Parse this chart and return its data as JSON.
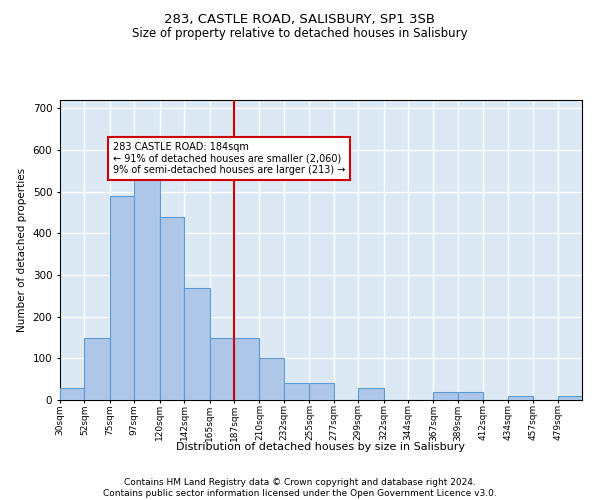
{
  "title1": "283, CASTLE ROAD, SALISBURY, SP1 3SB",
  "title2": "Size of property relative to detached houses in Salisbury",
  "xlabel": "Distribution of detached houses by size in Salisbury",
  "ylabel": "Number of detached properties",
  "footnote": "Contains HM Land Registry data © Crown copyright and database right 2024.\nContains public sector information licensed under the Open Government Licence v3.0.",
  "bin_labels": [
    "30sqm",
    "52sqm",
    "75sqm",
    "97sqm",
    "120sqm",
    "142sqm",
    "165sqm",
    "187sqm",
    "210sqm",
    "232sqm",
    "255sqm",
    "277sqm",
    "299sqm",
    "322sqm",
    "344sqm",
    "367sqm",
    "389sqm",
    "412sqm",
    "434sqm",
    "457sqm",
    "479sqm"
  ],
  "bin_edges": [
    30,
    52,
    75,
    97,
    120,
    142,
    165,
    187,
    210,
    232,
    255,
    277,
    299,
    322,
    344,
    367,
    389,
    412,
    434,
    457,
    479
  ],
  "bar_heights": [
    30,
    150,
    490,
    565,
    440,
    270,
    150,
    150,
    100,
    40,
    40,
    0,
    30,
    0,
    0,
    20,
    20,
    0,
    10,
    0,
    10
  ],
  "bar_color": "#aec6e8",
  "bar_edgecolor": "#5b9bd5",
  "property_line_x": 187,
  "property_line_color": "#cc0000",
  "annotation_text": "283 CASTLE ROAD: 184sqm\n← 91% of detached houses are smaller (2,060)\n9% of semi-detached houses are larger (213) →",
  "annotation_box_edgecolor": "#cc0000",
  "ylim": [
    0,
    720
  ],
  "yticks": [
    0,
    100,
    200,
    300,
    400,
    500,
    600,
    700
  ],
  "bg_color": "#dce9f5",
  "grid_color": "#ffffff",
  "title1_fontsize": 9.5,
  "title2_fontsize": 8.5,
  "footnote_fontsize": 6.5
}
